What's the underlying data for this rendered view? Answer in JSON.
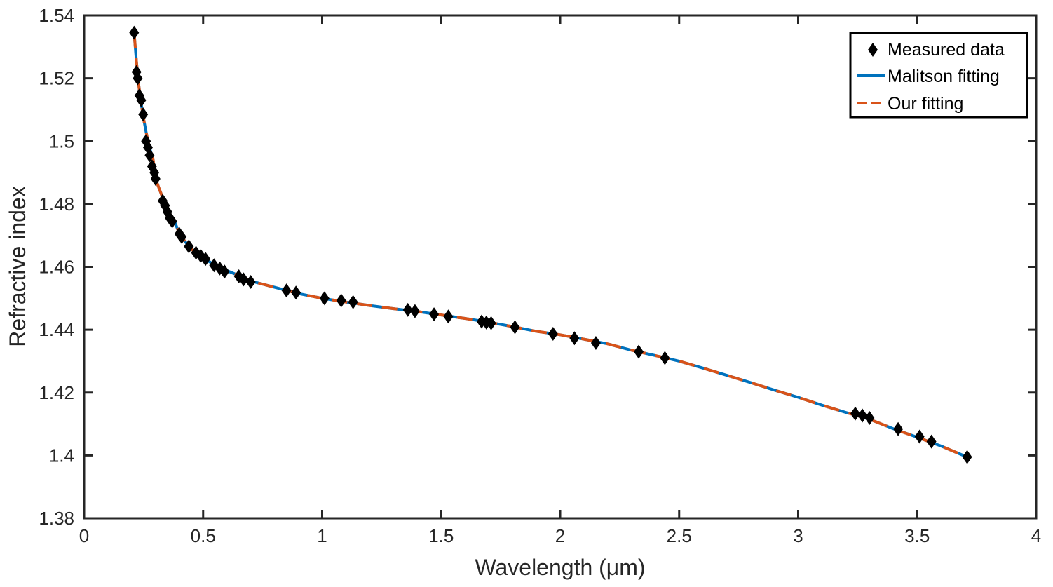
{
  "chart_data": {
    "type": "line",
    "xlabel": "Wavelength (μm)",
    "ylabel": "Refractive index",
    "xlim": [
      0,
      4
    ],
    "ylim": [
      1.38,
      1.54
    ],
    "x_ticks": [
      0,
      0.5,
      1,
      1.5,
      2,
      2.5,
      3,
      3.5,
      4
    ],
    "x_tick_labels": [
      "0",
      "0.5",
      "1",
      "1.5",
      "2",
      "2.5",
      "3",
      "3.5",
      "4"
    ],
    "y_ticks": [
      1.38,
      1.4,
      1.42,
      1.44,
      1.46,
      1.48,
      1.5,
      1.52,
      1.54
    ],
    "y_tick_labels": [
      "1.38",
      "1.4",
      "1.42",
      "1.44",
      "1.46",
      "1.48",
      "1.5",
      "1.52",
      "1.54"
    ],
    "grid": false,
    "legend_position": "top-right",
    "series": [
      {
        "name": "Measured data",
        "kind": "scatter",
        "marker": "diamond",
        "color": "#000000",
        "x": [
          0.21,
          0.22,
          0.225,
          0.232,
          0.24,
          0.248,
          0.26,
          0.268,
          0.275,
          0.285,
          0.295,
          0.3,
          0.33,
          0.34,
          0.35,
          0.36,
          0.37,
          0.4,
          0.41,
          0.44,
          0.47,
          0.49,
          0.51,
          0.546,
          0.57,
          0.59,
          0.65,
          0.67,
          0.7,
          0.85,
          0.89,
          1.01,
          1.08,
          1.13,
          1.36,
          1.39,
          1.47,
          1.53,
          1.67,
          1.69,
          1.71,
          1.81,
          1.97,
          2.06,
          2.15,
          2.33,
          2.44,
          3.24,
          3.27,
          3.3,
          3.42,
          3.51,
          3.56,
          3.71
        ],
        "y": [
          1.5345,
          1.522,
          1.52,
          1.5145,
          1.513,
          1.5085,
          1.5,
          1.498,
          1.4955,
          1.492,
          1.49,
          1.488,
          1.481,
          1.4795,
          1.4775,
          1.4755,
          1.4745,
          1.4705,
          1.4695,
          1.4665,
          1.4645,
          1.4635,
          1.4625,
          1.4605,
          1.4595,
          1.4585,
          1.457,
          1.456,
          1.4552,
          1.4525,
          1.4518,
          1.45,
          1.4493,
          1.4488,
          1.4463,
          1.4459,
          1.4449,
          1.4442,
          1.4426,
          1.4423,
          1.4421,
          1.4408,
          1.4387,
          1.4373,
          1.4358,
          1.433,
          1.431,
          1.4133,
          1.4127,
          1.4119,
          1.4084,
          1.406,
          1.4044,
          1.3995
        ]
      },
      {
        "name": "Malitson fitting",
        "kind": "line",
        "style": "solid",
        "color": "#0072bd",
        "x": [
          0.21,
          0.22,
          0.23,
          0.24,
          0.25,
          0.26,
          0.27,
          0.28,
          0.29,
          0.3,
          0.32,
          0.34,
          0.36,
          0.38,
          0.4,
          0.43,
          0.46,
          0.5,
          0.55,
          0.6,
          0.65,
          0.7,
          0.8,
          0.9,
          1.0,
          1.1,
          1.2,
          1.3,
          1.4,
          1.5,
          1.6,
          1.7,
          1.8,
          1.9,
          2.0,
          2.1,
          2.2,
          2.3,
          2.4,
          2.5,
          2.6,
          2.7,
          2.8,
          2.9,
          3.0,
          3.1,
          3.2,
          3.3,
          3.4,
          3.5,
          3.6,
          3.71
        ],
        "y": [
          1.5345,
          1.525,
          1.5175,
          1.5118,
          1.507,
          1.503,
          1.4995,
          1.4965,
          1.494,
          1.488,
          1.484,
          1.48,
          1.477,
          1.4745,
          1.4705,
          1.4675,
          1.465,
          1.4628,
          1.4606,
          1.4588,
          1.4572,
          1.4555,
          1.4535,
          1.4515,
          1.45,
          1.4488,
          1.4477,
          1.4467,
          1.4458,
          1.4447,
          1.4436,
          1.4424,
          1.441,
          1.4395,
          1.4384,
          1.437,
          1.4355,
          1.4335,
          1.4318,
          1.43,
          1.4278,
          1.4255,
          1.4232,
          1.4208,
          1.4185,
          1.416,
          1.4137,
          1.4115,
          1.4085,
          1.4058,
          1.403,
          1.3995
        ]
      },
      {
        "name": "Our fitting",
        "kind": "line",
        "style": "dashed",
        "color": "#d95319",
        "x": [
          0.21,
          0.22,
          0.23,
          0.24,
          0.25,
          0.26,
          0.27,
          0.28,
          0.29,
          0.3,
          0.32,
          0.34,
          0.36,
          0.38,
          0.4,
          0.43,
          0.46,
          0.5,
          0.55,
          0.6,
          0.65,
          0.7,
          0.8,
          0.9,
          1.0,
          1.1,
          1.2,
          1.3,
          1.4,
          1.5,
          1.6,
          1.7,
          1.8,
          1.9,
          2.0,
          2.1,
          2.2,
          2.3,
          2.4,
          2.5,
          2.6,
          2.7,
          2.8,
          2.9,
          3.0,
          3.1,
          3.2,
          3.3,
          3.4,
          3.5,
          3.6,
          3.71
        ],
        "y": [
          1.5345,
          1.525,
          1.5175,
          1.5118,
          1.507,
          1.503,
          1.4995,
          1.4965,
          1.494,
          1.488,
          1.484,
          1.48,
          1.477,
          1.4745,
          1.4705,
          1.4675,
          1.465,
          1.4628,
          1.4606,
          1.4588,
          1.4572,
          1.4555,
          1.4535,
          1.4515,
          1.45,
          1.4488,
          1.4477,
          1.4467,
          1.4458,
          1.4447,
          1.4436,
          1.4424,
          1.441,
          1.4395,
          1.4384,
          1.437,
          1.4355,
          1.4335,
          1.4318,
          1.43,
          1.4278,
          1.4255,
          1.4232,
          1.4208,
          1.4185,
          1.416,
          1.4137,
          1.4115,
          1.4085,
          1.4058,
          1.403,
          1.3995
        ]
      }
    ]
  }
}
